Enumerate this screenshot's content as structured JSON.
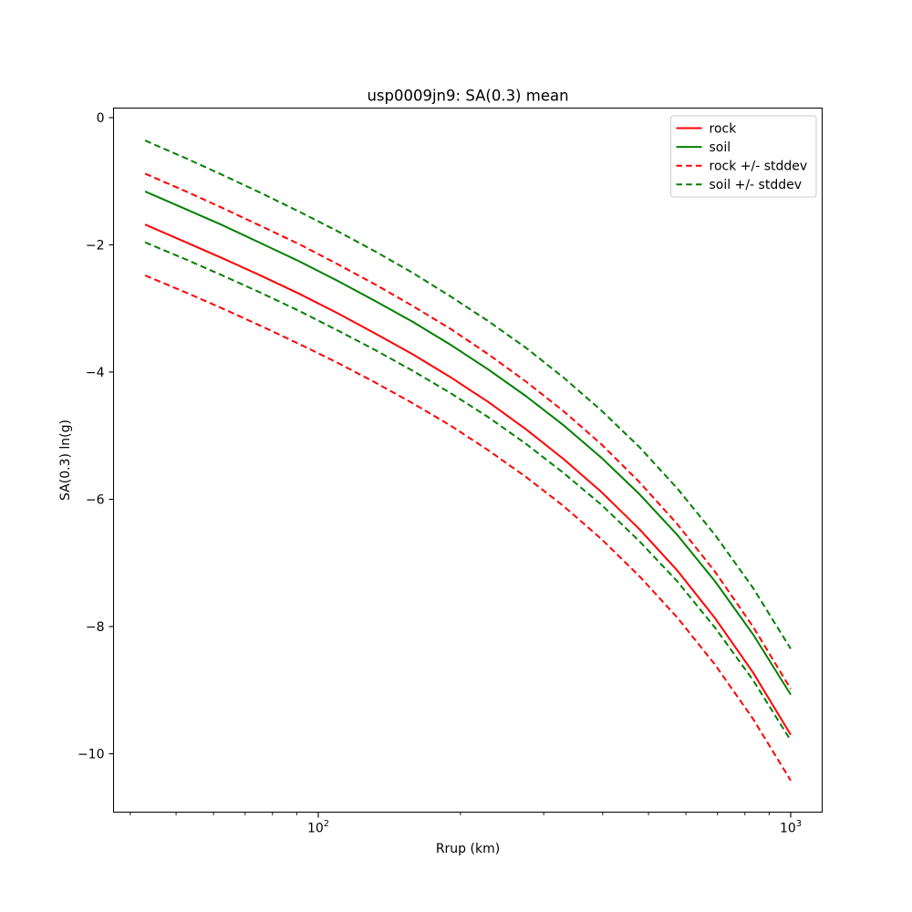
{
  "chart_data": {
    "type": "line",
    "title": "usp0009jn9: SA(0.3) mean",
    "xlabel": "Rrup (km)",
    "ylabel": "SA(0.3) ln(g)",
    "x_scale": "log",
    "xlim": [
      36.9,
      1165
    ],
    "ylim": [
      -10.92,
      0.15
    ],
    "grid": false,
    "legend_position": "upper right",
    "x": [
      43,
      52.5,
      63.1,
      75.9,
      91.2,
      109.6,
      131.8,
      158.5,
      190.5,
      229.1,
      275.4,
      331.1,
      398.1,
      478.6,
      575.4,
      691.8,
      831.8,
      1000
    ],
    "series": [
      {
        "name": "rock",
        "color": "#ff0000",
        "style": "solid",
        "values": [
          -1.68,
          -1.96,
          -2.22,
          -2.49,
          -2.77,
          -3.07,
          -3.39,
          -3.72,
          -4.08,
          -4.47,
          -4.9,
          -5.37,
          -5.89,
          -6.47,
          -7.12,
          -7.87,
          -8.72,
          -9.7
        ]
      },
      {
        "name": "soil",
        "color": "#008000",
        "style": "solid",
        "values": [
          -1.16,
          -1.44,
          -1.7,
          -1.98,
          -2.26,
          -2.56,
          -2.88,
          -3.21,
          -3.57,
          -3.96,
          -4.38,
          -4.84,
          -5.35,
          -5.92,
          -6.56,
          -7.29,
          -8.12,
          -9.07
        ]
      },
      {
        "name": "rock-plus-stddev",
        "color": "#ff0000",
        "style": "dashed",
        "values": [
          -0.88,
          -1.16,
          -1.43,
          -1.71,
          -1.99,
          -2.3,
          -2.62,
          -2.96,
          -3.32,
          -3.72,
          -4.15,
          -4.62,
          -5.14,
          -5.73,
          -6.39,
          -7.14,
          -8.0,
          -8.98
        ]
      },
      {
        "name": "rock-minus-stddev",
        "color": "#ff0000",
        "style": "dashed",
        "values": [
          -2.48,
          -2.75,
          -3.01,
          -3.28,
          -3.56,
          -3.85,
          -4.16,
          -4.49,
          -4.84,
          -5.23,
          -5.65,
          -6.11,
          -6.63,
          -7.21,
          -7.86,
          -8.6,
          -9.45,
          -10.42
        ]
      },
      {
        "name": "soil-plus-stddev",
        "color": "#008000",
        "style": "dashed",
        "values": [
          -0.36,
          -0.64,
          -0.91,
          -1.19,
          -1.48,
          -1.78,
          -2.1,
          -2.44,
          -2.81,
          -3.2,
          -3.62,
          -4.09,
          -4.61,
          -5.18,
          -5.83,
          -6.56,
          -7.39,
          -8.35
        ]
      },
      {
        "name": "soil-minus-stddev",
        "color": "#008000",
        "style": "dashed",
        "values": [
          -1.96,
          -2.23,
          -2.49,
          -2.76,
          -3.04,
          -3.34,
          -3.65,
          -3.98,
          -4.33,
          -4.71,
          -5.13,
          -5.59,
          -6.09,
          -6.66,
          -7.29,
          -8.02,
          -8.84,
          -9.79
        ]
      }
    ],
    "x_major_ticks": [
      {
        "value": 100,
        "base": "10",
        "exponent": "2"
      },
      {
        "value": 1000,
        "base": "10",
        "exponent": "3"
      }
    ],
    "x_minor_ticks": [
      40,
      50,
      60,
      70,
      80,
      90,
      200,
      300,
      400,
      500,
      600,
      700,
      800,
      900
    ],
    "y_major_ticks": [
      {
        "value": 0,
        "label": "0"
      },
      {
        "value": -2,
        "label": "−2"
      },
      {
        "value": -4,
        "label": "−4"
      },
      {
        "value": -6,
        "label": "−6"
      },
      {
        "value": -8,
        "label": "−8"
      },
      {
        "value": -10,
        "label": "−10"
      }
    ],
    "legend": {
      "items": [
        {
          "label": "rock",
          "color": "#ff0000",
          "style": "solid"
        },
        {
          "label": "soil",
          "color": "#008000",
          "style": "solid"
        },
        {
          "label": "rock +/- stddev",
          "color": "#ff0000",
          "style": "dashed"
        },
        {
          "label": "soil +/- stddev",
          "color": "#008000",
          "style": "dashed"
        }
      ]
    },
    "colors": {
      "rock": "#ff0000",
      "soil": "#008000",
      "frame": "#000000",
      "legend_border": "#cccccc",
      "background": "#ffffff"
    }
  }
}
